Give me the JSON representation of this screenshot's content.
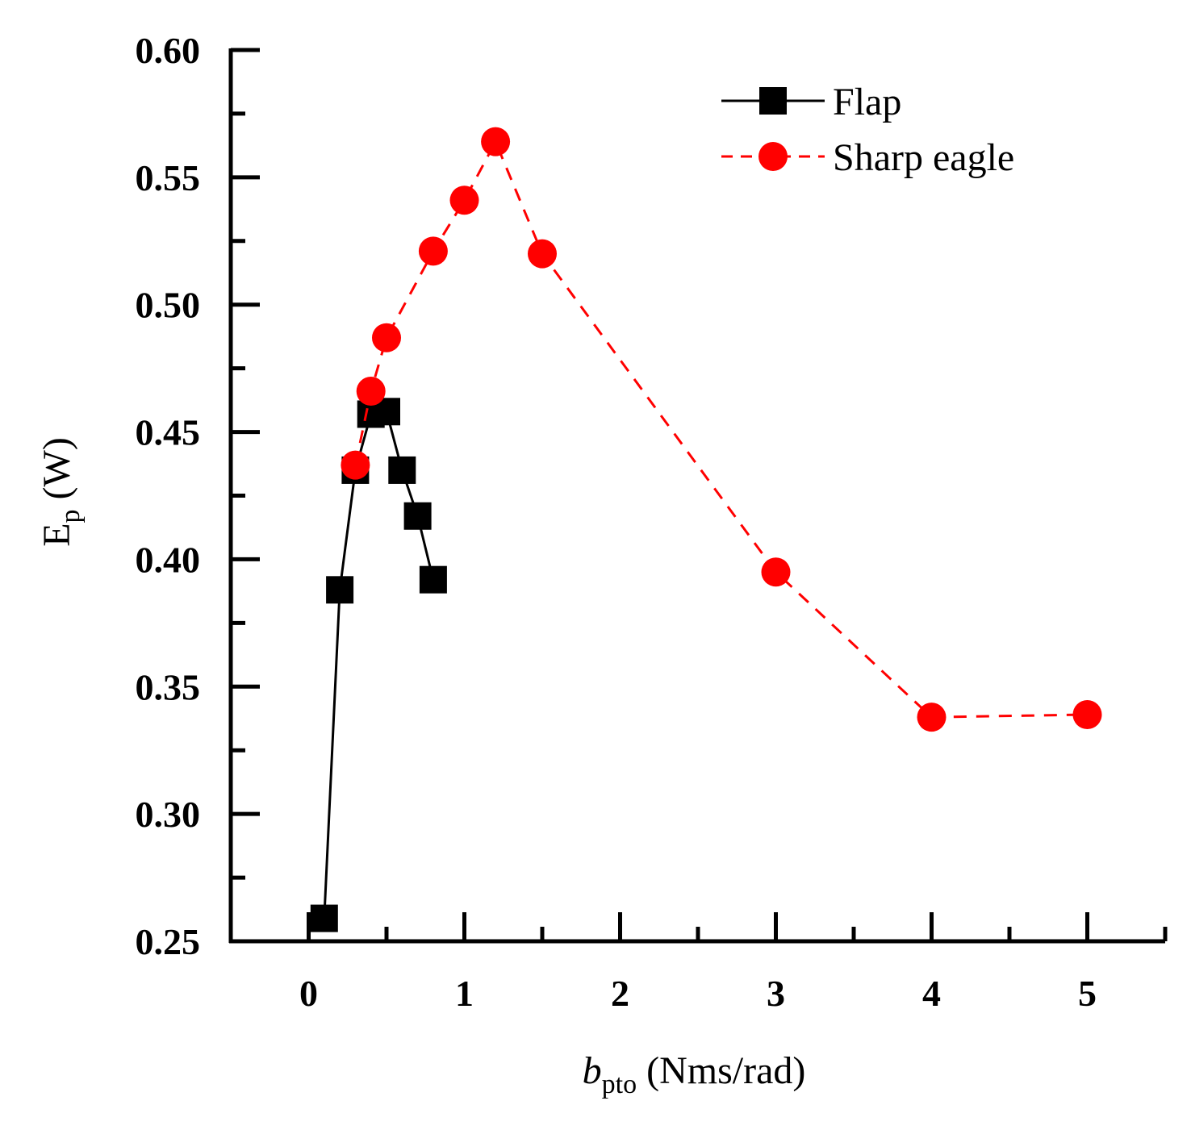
{
  "chart_data": {
    "type": "line",
    "x_label": {
      "symbol": "b",
      "subscript": "pto",
      "units": " (Nms/rad)"
    },
    "y_label": {
      "symbol": "E",
      "subscript": "p",
      "units": " (W)"
    },
    "xlim": [
      -0.5,
      5.5
    ],
    "ylim": [
      0.25,
      0.6
    ],
    "x_ticks": [
      0,
      1,
      2,
      3,
      4,
      5
    ],
    "x_tick_labels": [
      "0",
      "1",
      "2",
      "3",
      "4",
      "5"
    ],
    "y_ticks": [
      0.25,
      0.3,
      0.35,
      0.4,
      0.45,
      0.5,
      0.55,
      0.6
    ],
    "y_tick_labels": [
      "0.25",
      "0.30",
      "0.35",
      "0.40",
      "0.45",
      "0.50",
      "0.55",
      "0.60"
    ],
    "legend_position": "top-right",
    "series": [
      {
        "name": "Flap",
        "color": "#000000",
        "marker": "square",
        "line_style": "solid",
        "x": [
          0.1,
          0.2,
          0.3,
          0.4,
          0.5,
          0.6,
          0.7,
          0.8
        ],
        "y": [
          0.259,
          0.388,
          0.435,
          0.457,
          0.458,
          0.435,
          0.417,
          0.392
        ]
      },
      {
        "name": "Sharp eagle",
        "color": "#ff0000",
        "marker": "circle",
        "line_style": "dashed",
        "x": [
          0.3,
          0.4,
          0.5,
          0.8,
          1.0,
          1.2,
          1.5,
          3.0,
          4.0,
          5.0
        ],
        "y": [
          0.437,
          0.466,
          0.487,
          0.521,
          0.541,
          0.564,
          0.52,
          0.395,
          0.338,
          0.339
        ]
      }
    ]
  }
}
